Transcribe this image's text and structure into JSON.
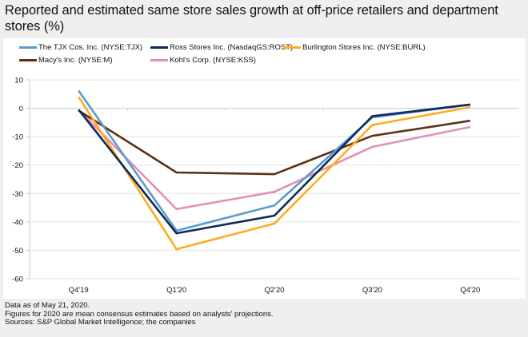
{
  "chart_data": {
    "type": "line",
    "title": "Reported and estimated same store sales growth at off-price retailers and department stores (%)",
    "xlabel": "",
    "ylabel": "",
    "categories": [
      "Q4'19",
      "Q1'20",
      "Q2'20",
      "Q3'20",
      "Q4'20"
    ],
    "ylim": [
      -60,
      10
    ],
    "yticks": [
      10,
      0,
      -10,
      -20,
      -30,
      -40,
      -50,
      -60
    ],
    "grid": true,
    "legend_position": "top",
    "series": [
      {
        "name": "The TJX Cos. Inc. (NYSE:TJX)",
        "color": "#5b9ccb",
        "values": [
          6.2,
          -43.1,
          -34.2,
          -3.2,
          1.3
        ]
      },
      {
        "name": "Ross Stores Inc. (NasdaqGS:ROST)",
        "color": "#0c2b58",
        "values": [
          -0.5,
          -44.0,
          -37.8,
          -2.8,
          1.3
        ]
      },
      {
        "name": "Burlington Stores Inc. (NYSE:BURL)",
        "color": "#ffab1f",
        "values": [
          4.0,
          -49.6,
          -40.6,
          -5.9,
          0.4
        ]
      },
      {
        "name": "Macy's Inc. (NYSE:M)",
        "color": "#5a3216",
        "values": [
          -0.8,
          -22.6,
          -23.2,
          -9.7,
          -4.4
        ]
      },
      {
        "name": "Kohl's Corp. (NYSE:KSS)",
        "color": "#e391b3",
        "values": [
          -0.5,
          -35.5,
          -29.4,
          -13.6,
          -6.6
        ]
      }
    ]
  },
  "footer": {
    "line1": "Data as of May 21, 2020.",
    "line2": "Figures for 2020 are mean consensus estimates based on analysts' projections.",
    "line3": "Sources: S&P Global Market Intelligence; the companies"
  }
}
